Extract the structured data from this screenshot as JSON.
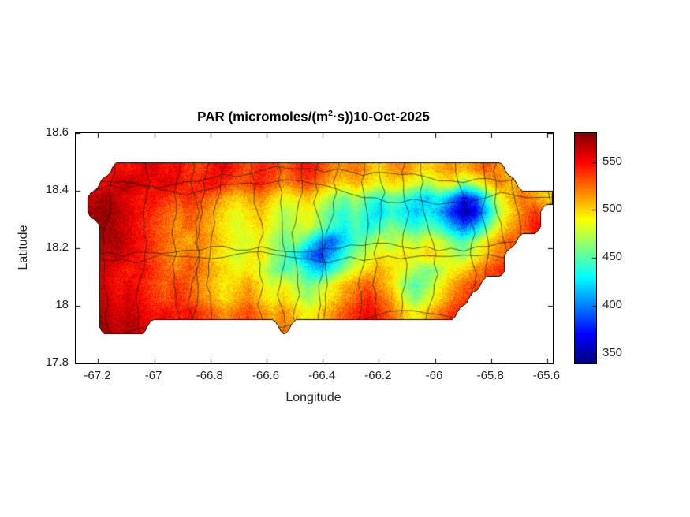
{
  "figure": {
    "title": {
      "prefix": "PAR (micromoles/(m",
      "sup": "2",
      "suffix": "·s))10-Oct-2025"
    },
    "xlabel": "Longitude",
    "ylabel": "Latitude",
    "background": "#ffffff"
  },
  "chart_data": {
    "type": "heatmap",
    "title": "PAR (micromoles/(m^2·s))10-Oct-2025",
    "variable": "PAR",
    "units": "micromoles/(m^2·s)",
    "date": "10-Oct-2025",
    "xlabel": "Longitude",
    "ylabel": "Latitude",
    "xlim": [
      -67.28,
      -65.58
    ],
    "ylim": [
      17.8,
      18.6
    ],
    "xticks": [
      -67.2,
      -67,
      -66.8,
      -66.6,
      -66.4,
      -66.2,
      -66,
      -65.8,
      -65.6
    ],
    "xtick_labels": [
      "-67.2",
      "-67",
      "-66.8",
      "-66.6",
      "-66.4",
      "-66.2",
      "-66",
      "-65.8",
      "-65.6"
    ],
    "yticks": [
      17.8,
      18,
      18.2,
      18.4,
      18.6
    ],
    "ytick_labels": [
      "17.8",
      "18",
      "18.2",
      "18.4",
      "18.6"
    ],
    "colormap": "jet",
    "clim": [
      340,
      580
    ],
    "colorbar": {
      "ticks": [
        350,
        400,
        450,
        500,
        550
      ],
      "tick_labels": [
        "350",
        "400",
        "450",
        "500",
        "550"
      ]
    },
    "grid": {
      "nrows": 16,
      "ncols": 40,
      "lon_range": [
        -67.28,
        -65.58
      ],
      "lat_range": [
        17.8,
        18.6
      ],
      "values": [
        [
          null,
          null,
          null,
          null,
          null,
          null,
          null,
          null,
          null,
          null,
          null,
          null,
          null,
          null,
          null,
          null,
          null,
          null,
          null,
          null,
          null,
          null,
          null,
          null,
          null,
          null,
          null,
          null,
          null,
          null,
          null,
          null,
          null,
          null,
          null,
          null,
          null,
          null,
          null,
          null
        ],
        [
          null,
          null,
          null,
          null,
          null,
          null,
          null,
          null,
          null,
          null,
          null,
          null,
          null,
          null,
          null,
          null,
          null,
          null,
          null,
          null,
          null,
          null,
          null,
          null,
          null,
          null,
          null,
          null,
          null,
          null,
          null,
          null,
          null,
          null,
          null,
          null,
          null,
          null,
          null,
          null
        ],
        [
          null,
          null,
          null,
          550,
          545,
          555,
          560,
          548,
          552,
          540,
          535,
          548,
          555,
          542,
          530,
          545,
          538,
          525,
          540,
          548,
          535,
          520,
          515,
          525,
          510,
          500,
          515,
          520,
          505,
          498,
          510,
          515,
          505,
          520,
          530,
          515,
          null,
          null,
          null,
          null
        ],
        [
          null,
          null,
          550,
          560,
          570,
          558,
          548,
          560,
          552,
          538,
          545,
          552,
          540,
          528,
          535,
          545,
          530,
          515,
          528,
          535,
          520,
          505,
          498,
          510,
          495,
          485,
          500,
          492,
          480,
          470,
          488,
          495,
          460,
          478,
          498,
          520,
          505,
          null,
          null,
          null
        ],
        [
          null,
          565,
          572,
          562,
          552,
          545,
          550,
          540,
          532,
          542,
          535,
          522,
          510,
          500,
          510,
          518,
          500,
          485,
          495,
          505,
          485,
          468,
          455,
          472,
          452,
          438,
          455,
          445,
          430,
          418,
          435,
          405,
          372,
          388,
          440,
          485,
          508,
          525,
          510,
          500
        ],
        [
          null,
          572,
          578,
          568,
          558,
          548,
          540,
          530,
          520,
          532,
          522,
          510,
          498,
          485,
          495,
          505,
          488,
          470,
          480,
          490,
          468,
          450,
          438,
          455,
          435,
          420,
          440,
          428,
          415,
          430,
          410,
          380,
          350,
          365,
          420,
          470,
          500,
          520,
          540,
          null
        ],
        [
          null,
          null,
          575,
          565,
          555,
          545,
          535,
          525,
          515,
          528,
          518,
          505,
          492,
          480,
          490,
          500,
          482,
          465,
          475,
          485,
          460,
          445,
          430,
          450,
          430,
          445,
          460,
          448,
          438,
          452,
          440,
          415,
          390,
          410,
          450,
          490,
          510,
          528,
          545,
          null
        ],
        [
          null,
          null,
          568,
          570,
          560,
          548,
          538,
          528,
          518,
          508,
          520,
          510,
          498,
          486,
          478,
          490,
          472,
          455,
          468,
          440,
          405,
          390,
          420,
          445,
          460,
          478,
          468,
          482,
          470,
          488,
          478,
          460,
          445,
          470,
          495,
          515,
          530,
          null,
          null,
          null
        ],
        [
          null,
          null,
          562,
          565,
          555,
          545,
          535,
          522,
          512,
          525,
          515,
          502,
          490,
          478,
          488,
          498,
          470,
          452,
          430,
          398,
          380,
          410,
          438,
          465,
          480,
          495,
          485,
          498,
          488,
          502,
          492,
          478,
          465,
          488,
          508,
          522,
          null,
          null,
          null,
          null
        ],
        [
          null,
          null,
          560,
          550,
          542,
          552,
          540,
          530,
          520,
          532,
          522,
          510,
          498,
          486,
          496,
          480,
          462,
          445,
          460,
          430,
          415,
          440,
          465,
          485,
          498,
          510,
          498,
          485,
          470,
          455,
          470,
          488,
          500,
          515,
          528,
          540,
          null,
          null,
          null,
          null
        ],
        [
          null,
          null,
          558,
          548,
          555,
          545,
          535,
          525,
          538,
          528,
          515,
          505,
          492,
          502,
          512,
          495,
          478,
          490,
          470,
          455,
          470,
          488,
          505,
          518,
          530,
          515,
          498,
          462,
          448,
          465,
          488,
          508,
          525,
          535,
          null,
          null,
          null,
          null,
          null,
          null
        ],
        [
          null,
          null,
          562,
          552,
          560,
          550,
          540,
          530,
          542,
          532,
          520,
          508,
          496,
          508,
          518,
          502,
          488,
          500,
          482,
          468,
          482,
          498,
          515,
          528,
          540,
          528,
          512,
          480,
          460,
          478,
          498,
          518,
          535,
          null,
          null,
          null,
          null,
          null,
          null,
          null
        ],
        [
          null,
          null,
          568,
          558,
          565,
          555,
          545,
          552,
          542,
          550,
          538,
          528,
          515,
          525,
          535,
          520,
          508,
          518,
          500,
          488,
          500,
          515,
          530,
          542,
          552,
          540,
          525,
          505,
          488,
          505,
          522,
          540,
          null,
          null,
          null,
          null,
          null,
          null,
          null,
          null
        ],
        [
          null,
          null,
          572,
          562,
          570,
          560,
          null,
          null,
          null,
          null,
          null,
          null,
          null,
          null,
          null,
          null,
          null,
          520,
          null,
          null,
          null,
          null,
          null,
          null,
          null,
          null,
          null,
          null,
          null,
          null,
          null,
          null,
          null,
          null,
          null,
          null,
          null,
          null,
          null,
          null
        ],
        [
          null,
          null,
          null,
          null,
          null,
          null,
          null,
          null,
          null,
          null,
          null,
          null,
          null,
          null,
          null,
          null,
          null,
          null,
          null,
          null,
          null,
          null,
          null,
          null,
          null,
          null,
          null,
          null,
          null,
          null,
          null,
          null,
          null,
          null,
          null,
          null,
          null,
          null,
          null,
          null
        ],
        [
          null,
          null,
          null,
          null,
          null,
          null,
          null,
          null,
          null,
          null,
          null,
          null,
          null,
          null,
          null,
          null,
          null,
          null,
          null,
          null,
          null,
          null,
          null,
          null,
          null,
          null,
          null,
          null,
          null,
          null,
          null,
          null,
          null,
          null,
          null,
          null,
          null,
          null,
          null,
          null
        ]
      ]
    }
  }
}
